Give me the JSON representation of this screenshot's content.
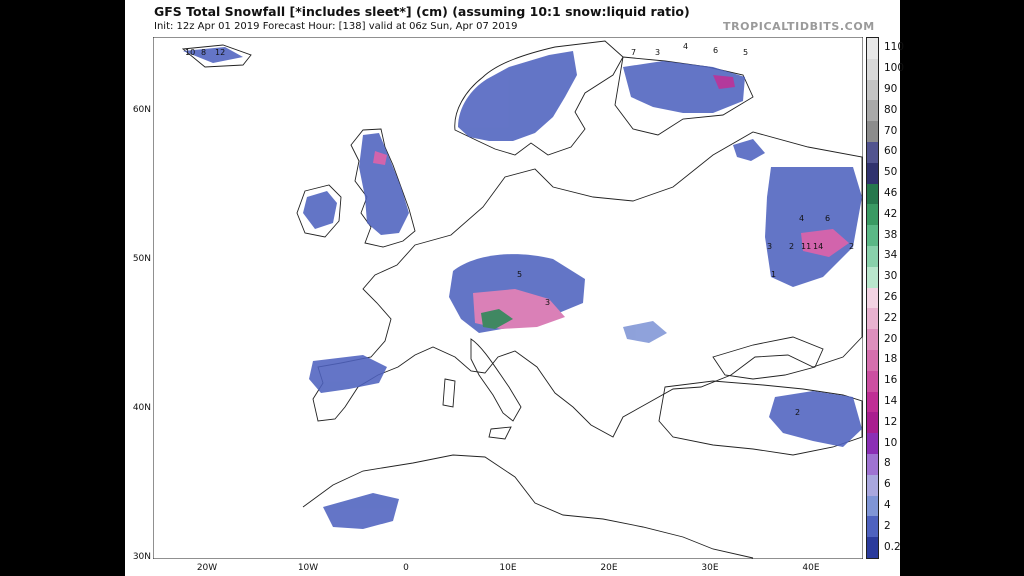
{
  "header": {
    "title": "GFS Total Snowfall [*includes sleet*] (cm) (assuming 10:1 snow:liquid ratio)",
    "subtitle": "Init: 12z Apr 01 2019   Forecast Hour: [138]   valid at 06z Sun, Apr 07 2019",
    "brand": "TROPICALTIDBITS.COM"
  },
  "axes": {
    "lat_labels": [
      "60N",
      "50N",
      "40N",
      "30N"
    ],
    "lon_labels": [
      "20W",
      "10W",
      "0",
      "10E",
      "20E",
      "30E",
      "40E"
    ]
  },
  "legend": {
    "labels": [
      "110",
      "100",
      "90",
      "80",
      "70",
      "60",
      "50",
      "46",
      "42",
      "38",
      "34",
      "30",
      "26",
      "22",
      "20",
      "18",
      "16",
      "14",
      "12",
      "10",
      "8",
      "6",
      "4",
      "2",
      "0.2"
    ],
    "colors": [
      "#e8e8e8",
      "#d9d9d9",
      "#c4c4c4",
      "#a9a9a9",
      "#8c8c8c",
      "#52548f",
      "#30326e",
      "#26784d",
      "#3a9a63",
      "#5bb886",
      "#89d1ab",
      "#b9e6cc",
      "#f2d3e2",
      "#e8b2cf",
      "#dd8fbd",
      "#d66fae",
      "#cc4fa1",
      "#bf2e95",
      "#a91e8f",
      "#8b2fb5",
      "#9f73d2",
      "#a9a7de",
      "#7f95d6",
      "#4e62bf",
      "#2b3b9c"
    ]
  },
  "annotations": [
    "10",
    "8",
    "12",
    "7",
    "3",
    "4",
    "6",
    "5",
    "1",
    "2",
    "11",
    "14",
    "5",
    "4",
    "2",
    "3",
    "6",
    "2",
    "3"
  ]
}
